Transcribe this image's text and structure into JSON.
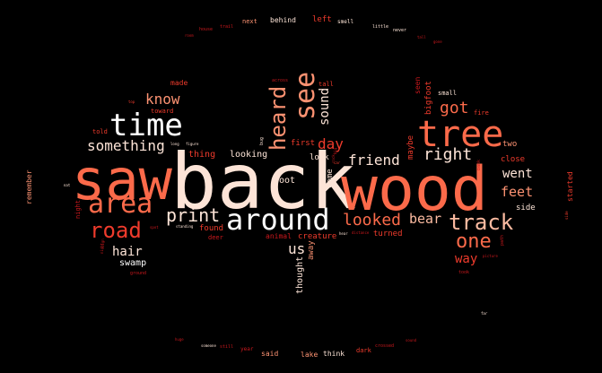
{
  "palette": {
    "white": "#ffffff",
    "pale": "#fde4d7",
    "peach": "#fcbba1",
    "salmon": "#fc9272",
    "coral": "#fb6a4a",
    "red": "#ef3b2c",
    "crimson": "#cb181d",
    "dark": "#a50f15"
  },
  "words": [
    {
      "text": "back",
      "color": "pale"
    },
    {
      "text": "saw",
      "color": "coral"
    },
    {
      "text": "wood",
      "color": "coral"
    },
    {
      "text": "tree",
      "color": "coral"
    },
    {
      "text": "time",
      "color": "white"
    },
    {
      "text": "area",
      "color": "coral"
    },
    {
      "text": "around",
      "color": "white"
    },
    {
      "text": "see",
      "color": "salmon"
    },
    {
      "text": "heard",
      "color": "salmon"
    },
    {
      "text": "track",
      "color": "peach"
    },
    {
      "text": "road",
      "color": "red"
    },
    {
      "text": "print",
      "color": "pale"
    },
    {
      "text": "one",
      "color": "coral"
    },
    {
      "text": "looked",
      "color": "coral"
    },
    {
      "text": "know",
      "color": "salmon"
    },
    {
      "text": "something",
      "color": "pale"
    },
    {
      "text": "right",
      "color": "pale"
    },
    {
      "text": "got",
      "color": "coral"
    },
    {
      "text": "friend",
      "color": "pale"
    },
    {
      "text": "day",
      "color": "red"
    },
    {
      "text": "sound",
      "color": "pale"
    },
    {
      "text": "bear",
      "color": "peach"
    },
    {
      "text": "hair",
      "color": "pale"
    },
    {
      "text": "us",
      "color": "pale"
    },
    {
      "text": "went",
      "color": "pale"
    },
    {
      "text": "feet",
      "color": "salmon"
    },
    {
      "text": "way",
      "color": "red"
    },
    {
      "text": "swamp",
      "color": "white"
    },
    {
      "text": "foot",
      "color": "pale"
    },
    {
      "text": "first",
      "color": "red"
    },
    {
      "text": "look",
      "color": "pale"
    },
    {
      "text": "came",
      "color": "pale"
    },
    {
      "text": "thought",
      "color": "pale"
    },
    {
      "text": "away",
      "color": "salmon"
    },
    {
      "text": "creature",
      "color": "red"
    },
    {
      "text": "animal",
      "color": "crimson"
    },
    {
      "text": "looking",
      "color": "pale"
    },
    {
      "text": "thing",
      "color": "red"
    },
    {
      "text": "found",
      "color": "red"
    },
    {
      "text": "deer",
      "color": "crimson"
    },
    {
      "text": "turned",
      "color": "red"
    },
    {
      "text": "side",
      "color": "pale"
    },
    {
      "text": "close",
      "color": "red"
    },
    {
      "text": "two",
      "color": "salmon"
    },
    {
      "text": "fire",
      "color": "red"
    },
    {
      "text": "small",
      "color": "pale"
    },
    {
      "text": "bigfoot",
      "color": "red"
    },
    {
      "text": "seen",
      "color": "crimson"
    },
    {
      "text": "maybe",
      "color": "red"
    },
    {
      "text": "tall",
      "color": "red"
    },
    {
      "text": "made",
      "color": "red"
    },
    {
      "text": "toward",
      "color": "red"
    },
    {
      "text": "told",
      "color": "red"
    },
    {
      "text": "night",
      "color": "crimson"
    },
    {
      "text": "remember",
      "color": "salmon"
    },
    {
      "text": "started",
      "color": "red"
    },
    {
      "text": "behind",
      "color": "pale"
    },
    {
      "text": "left",
      "color": "red"
    },
    {
      "text": "smell",
      "color": "pale"
    },
    {
      "text": "next",
      "color": "salmon"
    },
    {
      "text": "never",
      "color": "pale"
    },
    {
      "text": "little",
      "color": "pale"
    },
    {
      "text": "said",
      "color": "salmon"
    },
    {
      "text": "lake",
      "color": "salmon"
    },
    {
      "text": "think",
      "color": "pale"
    },
    {
      "text": "dark",
      "color": "red"
    },
    {
      "text": "year",
      "color": "crimson"
    },
    {
      "text": "still",
      "color": "crimson"
    },
    {
      "text": "crossed",
      "color": "crimson"
    },
    {
      "text": "ground",
      "color": "crimson"
    },
    {
      "text": "took",
      "color": "crimson"
    },
    {
      "text": "across",
      "color": "crimson"
    },
    {
      "text": "bank",
      "color": "crimson"
    },
    {
      "text": "path",
      "color": "crimson"
    },
    {
      "text": "house",
      "color": "crimson"
    },
    {
      "text": "trail",
      "color": "crimson"
    },
    {
      "text": "bug",
      "color": "pale"
    },
    {
      "text": "long",
      "color": "pale"
    },
    {
      "text": "figure",
      "color": "pale"
    },
    {
      "text": "top",
      "color": "red"
    },
    {
      "text": "standing",
      "color": "pale"
    },
    {
      "text": "picture",
      "color": "crimson"
    },
    {
      "text": "huge",
      "color": "crimson"
    },
    {
      "text": "someone",
      "color": "pale"
    },
    {
      "text": "sound",
      "color": "crimson"
    },
    {
      "text": "rock",
      "color": "crimson"
    },
    {
      "text": "tall",
      "color": "crimson"
    },
    {
      "text": "far",
      "color": "pale"
    },
    {
      "text": "nat",
      "color": "pale"
    },
    {
      "text": "room",
      "color": "crimson"
    },
    {
      "text": "side",
      "color": "red"
    },
    {
      "text": "distance",
      "color": "crimson"
    },
    {
      "text": "hear",
      "color": "pale"
    },
    {
      "text": "car",
      "color": "red"
    },
    {
      "text": "spot",
      "color": "crimson"
    },
    {
      "text": "night",
      "color": "crimson"
    },
    {
      "text": "sign",
      "color": "crimson"
    },
    {
      "text": "gone",
      "color": "crimson"
    },
    {
      "text": "big",
      "color": "crimson"
    }
  ]
}
